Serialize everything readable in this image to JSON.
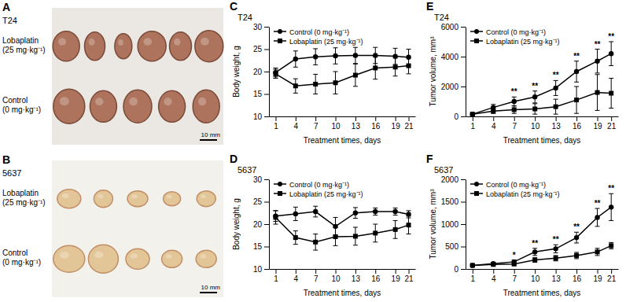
{
  "photos": [
    {
      "panel": "A",
      "title": "T24",
      "rows": [
        [
          "Lobaplatin",
          "(25 mg·kg⁻¹)"
        ],
        [
          "Control",
          "(0 mg·kg⁻¹)"
        ]
      ],
      "scale_bar": "10 mm"
    },
    {
      "panel": "B",
      "title": "5637",
      "rows": [
        [
          "Lobaplatin",
          "(25 mg·kg⁻¹)"
        ],
        [
          "Control",
          "(0 mg·kg⁻¹)"
        ]
      ],
      "scale_bar": "10 mm"
    }
  ],
  "chart_data": [
    {
      "type": "line",
      "panel": "C",
      "title": "T24",
      "x_label": "Treatment times, days",
      "y_label": "Body weight, g",
      "x": [
        1,
        4,
        7,
        10,
        13,
        16,
        19,
        21
      ],
      "xlim": [
        0,
        22
      ],
      "xticks": [
        1,
        4,
        7,
        10,
        13,
        16,
        19,
        21
      ],
      "ylim": [
        10,
        30
      ],
      "yticks": [
        10,
        15,
        20,
        25,
        30
      ],
      "grid": false,
      "legend": "upper left",
      "series": [
        {
          "name": "Control (0 mg·kg⁻¹)",
          "color": "#000000",
          "marker": "circle",
          "line_style": "solid",
          "values": [
            19.8,
            22.8,
            23.3,
            23.5,
            23.6,
            23.6,
            23.4,
            23.2
          ],
          "errors": [
            1.0,
            1.8,
            1.8,
            1.8,
            1.8,
            1.8,
            1.8,
            1.8
          ]
        },
        {
          "name": "Lobaplatin (25 mg·kg⁻¹)",
          "color": "#000000",
          "marker": "square",
          "line_style": "solid",
          "values": [
            19.5,
            16.8,
            17.2,
            17.5,
            19.2,
            20.8,
            21.0,
            21.3
          ],
          "errors": [
            1.0,
            1.6,
            2.2,
            2.5,
            2.5,
            2.5,
            2.0,
            1.8
          ]
        }
      ],
      "annotations": []
    },
    {
      "type": "line",
      "panel": "D",
      "title": "5637",
      "x_label": "Treatment times, days",
      "y_label": "Body weight, g",
      "x": [
        1,
        4,
        7,
        10,
        13,
        16,
        19,
        21
      ],
      "xlim": [
        0,
        22
      ],
      "xticks": [
        1,
        4,
        7,
        10,
        13,
        16,
        19,
        21
      ],
      "ylim": [
        10,
        30
      ],
      "yticks": [
        10,
        15,
        20,
        25,
        30
      ],
      "grid": false,
      "legend": "upper left",
      "series": [
        {
          "name": "Control (0 mg·kg⁻¹)",
          "color": "#000000",
          "marker": "circle",
          "line_style": "solid",
          "values": [
            21.8,
            22.3,
            22.8,
            19.5,
            22.5,
            22.8,
            22.8,
            22.2
          ],
          "errors": [
            1.2,
            1.5,
            1.2,
            2.0,
            1.2,
            0.8,
            0.8,
            0.8
          ]
        },
        {
          "name": "Lobaplatin (25 mg·kg⁻¹)",
          "color": "#000000",
          "marker": "square",
          "line_style": "solid",
          "values": [
            21.5,
            17.0,
            16.0,
            17.2,
            17.3,
            18.0,
            18.8,
            19.8
          ],
          "errors": [
            1.5,
            1.5,
            1.8,
            2.0,
            2.0,
            2.0,
            2.0,
            2.0
          ]
        }
      ],
      "annotations": []
    },
    {
      "type": "line",
      "panel": "E",
      "title": "T24",
      "x_label": "Treatment times, days",
      "y_label": "Tumor volume, mm³",
      "x": [
        1,
        4,
        7,
        10,
        13,
        16,
        19,
        21
      ],
      "xlim": [
        0,
        22
      ],
      "xticks": [
        1,
        4,
        7,
        10,
        13,
        16,
        19,
        21
      ],
      "ylim": [
        0,
        6000
      ],
      "yticks": [
        0,
        2000,
        4000,
        6000
      ],
      "grid": false,
      "legend": "upper left",
      "series": [
        {
          "name": "Control (0 mg·kg⁻¹)",
          "color": "#000000",
          "marker": "circle",
          "line_style": "solid",
          "values": [
            150,
            600,
            1000,
            1300,
            1900,
            3000,
            3700,
            4200
          ],
          "errors": [
            50,
            200,
            300,
            400,
            500,
            700,
            800,
            800
          ]
        },
        {
          "name": "Lobaplatin (25 mg·kg⁻¹)",
          "color": "#000000",
          "marker": "square",
          "line_style": "solid",
          "values": [
            150,
            350,
            450,
            500,
            650,
            1100,
            1600,
            1550
          ],
          "errors": [
            50,
            150,
            250,
            350,
            500,
            900,
            1200,
            1000
          ]
        }
      ],
      "annotations": [
        {
          "x": 7,
          "text": "**"
        },
        {
          "x": 10,
          "text": "**"
        },
        {
          "x": 13,
          "text": "**"
        },
        {
          "x": 16,
          "text": "**"
        },
        {
          "x": 19,
          "text": "**"
        },
        {
          "x": 21,
          "text": "**"
        }
      ]
    },
    {
      "type": "line",
      "panel": "F",
      "title": "5637",
      "x_label": "Treatment times, days",
      "y_label": "Tumor volume, mm³",
      "x": [
        1,
        4,
        7,
        10,
        13,
        16,
        19,
        21
      ],
      "xlim": [
        0,
        22
      ],
      "xticks": [
        1,
        4,
        7,
        10,
        13,
        16,
        19,
        21
      ],
      "ylim": [
        0,
        2000
      ],
      "yticks": [
        0,
        500,
        1000,
        1500,
        2000
      ],
      "grid": false,
      "legend": "upper left",
      "series": [
        {
          "name": "Control (0 mg·kg⁻¹)",
          "color": "#000000",
          "marker": "circle",
          "line_style": "solid",
          "values": [
            80,
            120,
            160,
            380,
            450,
            700,
            1150,
            1380
          ],
          "errors": [
            20,
            30,
            40,
            80,
            90,
            120,
            200,
            300
          ]
        },
        {
          "name": "Lobaplatin (25 mg·kg⁻¹)",
          "color": "#000000",
          "marker": "square",
          "line_style": "solid",
          "values": [
            80,
            100,
            110,
            200,
            240,
            300,
            380,
            520
          ],
          "errors": [
            20,
            20,
            30,
            50,
            60,
            70,
            80,
            70
          ]
        }
      ],
      "annotations": [
        {
          "x": 7,
          "text": "*"
        },
        {
          "x": 10,
          "text": "**"
        },
        {
          "x": 13,
          "text": "**"
        },
        {
          "x": 16,
          "text": "**"
        },
        {
          "x": 19,
          "text": "**"
        },
        {
          "x": 21,
          "text": "**"
        }
      ]
    }
  ]
}
